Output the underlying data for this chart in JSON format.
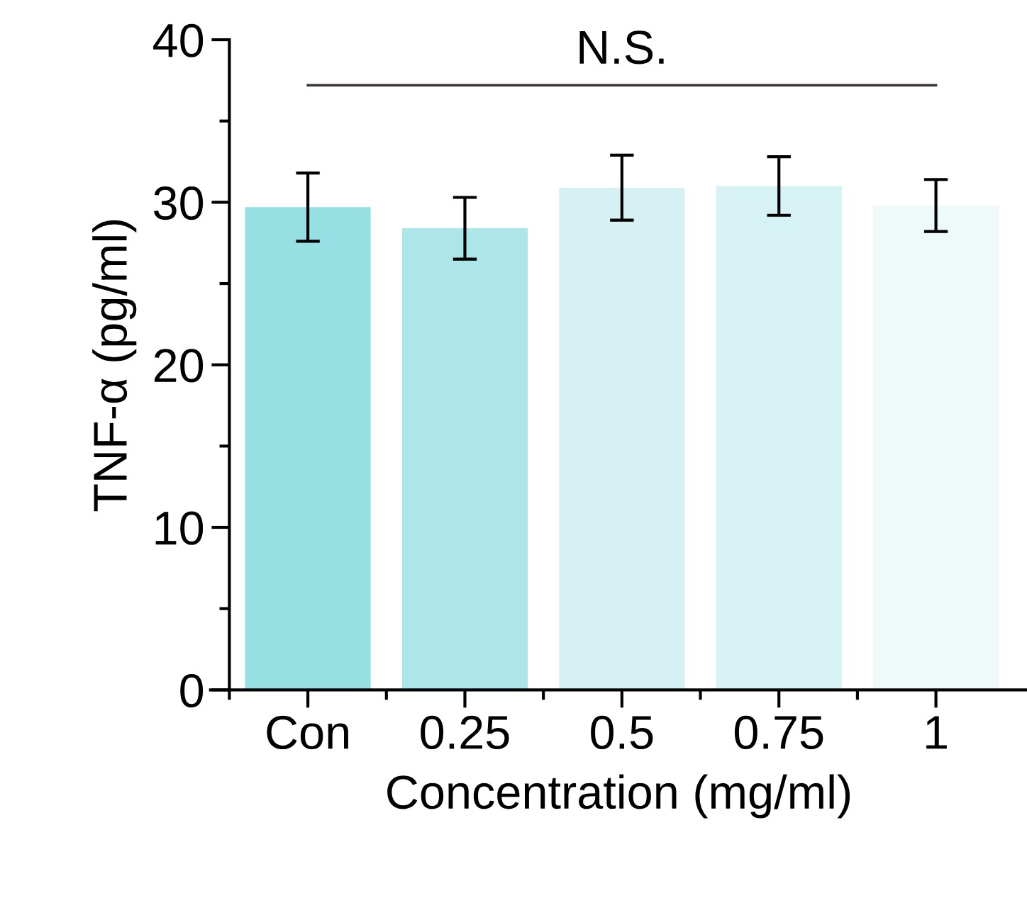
{
  "chart_data": {
    "type": "bar",
    "xlabel": "Concentration (mg/ml)",
    "ylabel": "TNF-α (pg/ml)",
    "categories": [
      "Con",
      "0.25",
      "0.5",
      "0.75",
      "1"
    ],
    "values": [
      29.7,
      28.4,
      30.9,
      31.0,
      29.8
    ],
    "errors": [
      2.1,
      1.9,
      2.0,
      1.8,
      1.6
    ],
    "colors": [
      "#96dfe3",
      "#ade6e9",
      "#d6f1f4",
      "#d7f2f4",
      "#eef9fa"
    ],
    "ylim": [
      0,
      40
    ],
    "yticks": [
      0,
      10,
      20,
      30,
      40
    ],
    "grid": false,
    "legend": false,
    "ref_lines": [
      {
        "axis": "y",
        "value": 37.2,
        "label": "N.S.",
        "color": "#3a3035"
      }
    ]
  }
}
